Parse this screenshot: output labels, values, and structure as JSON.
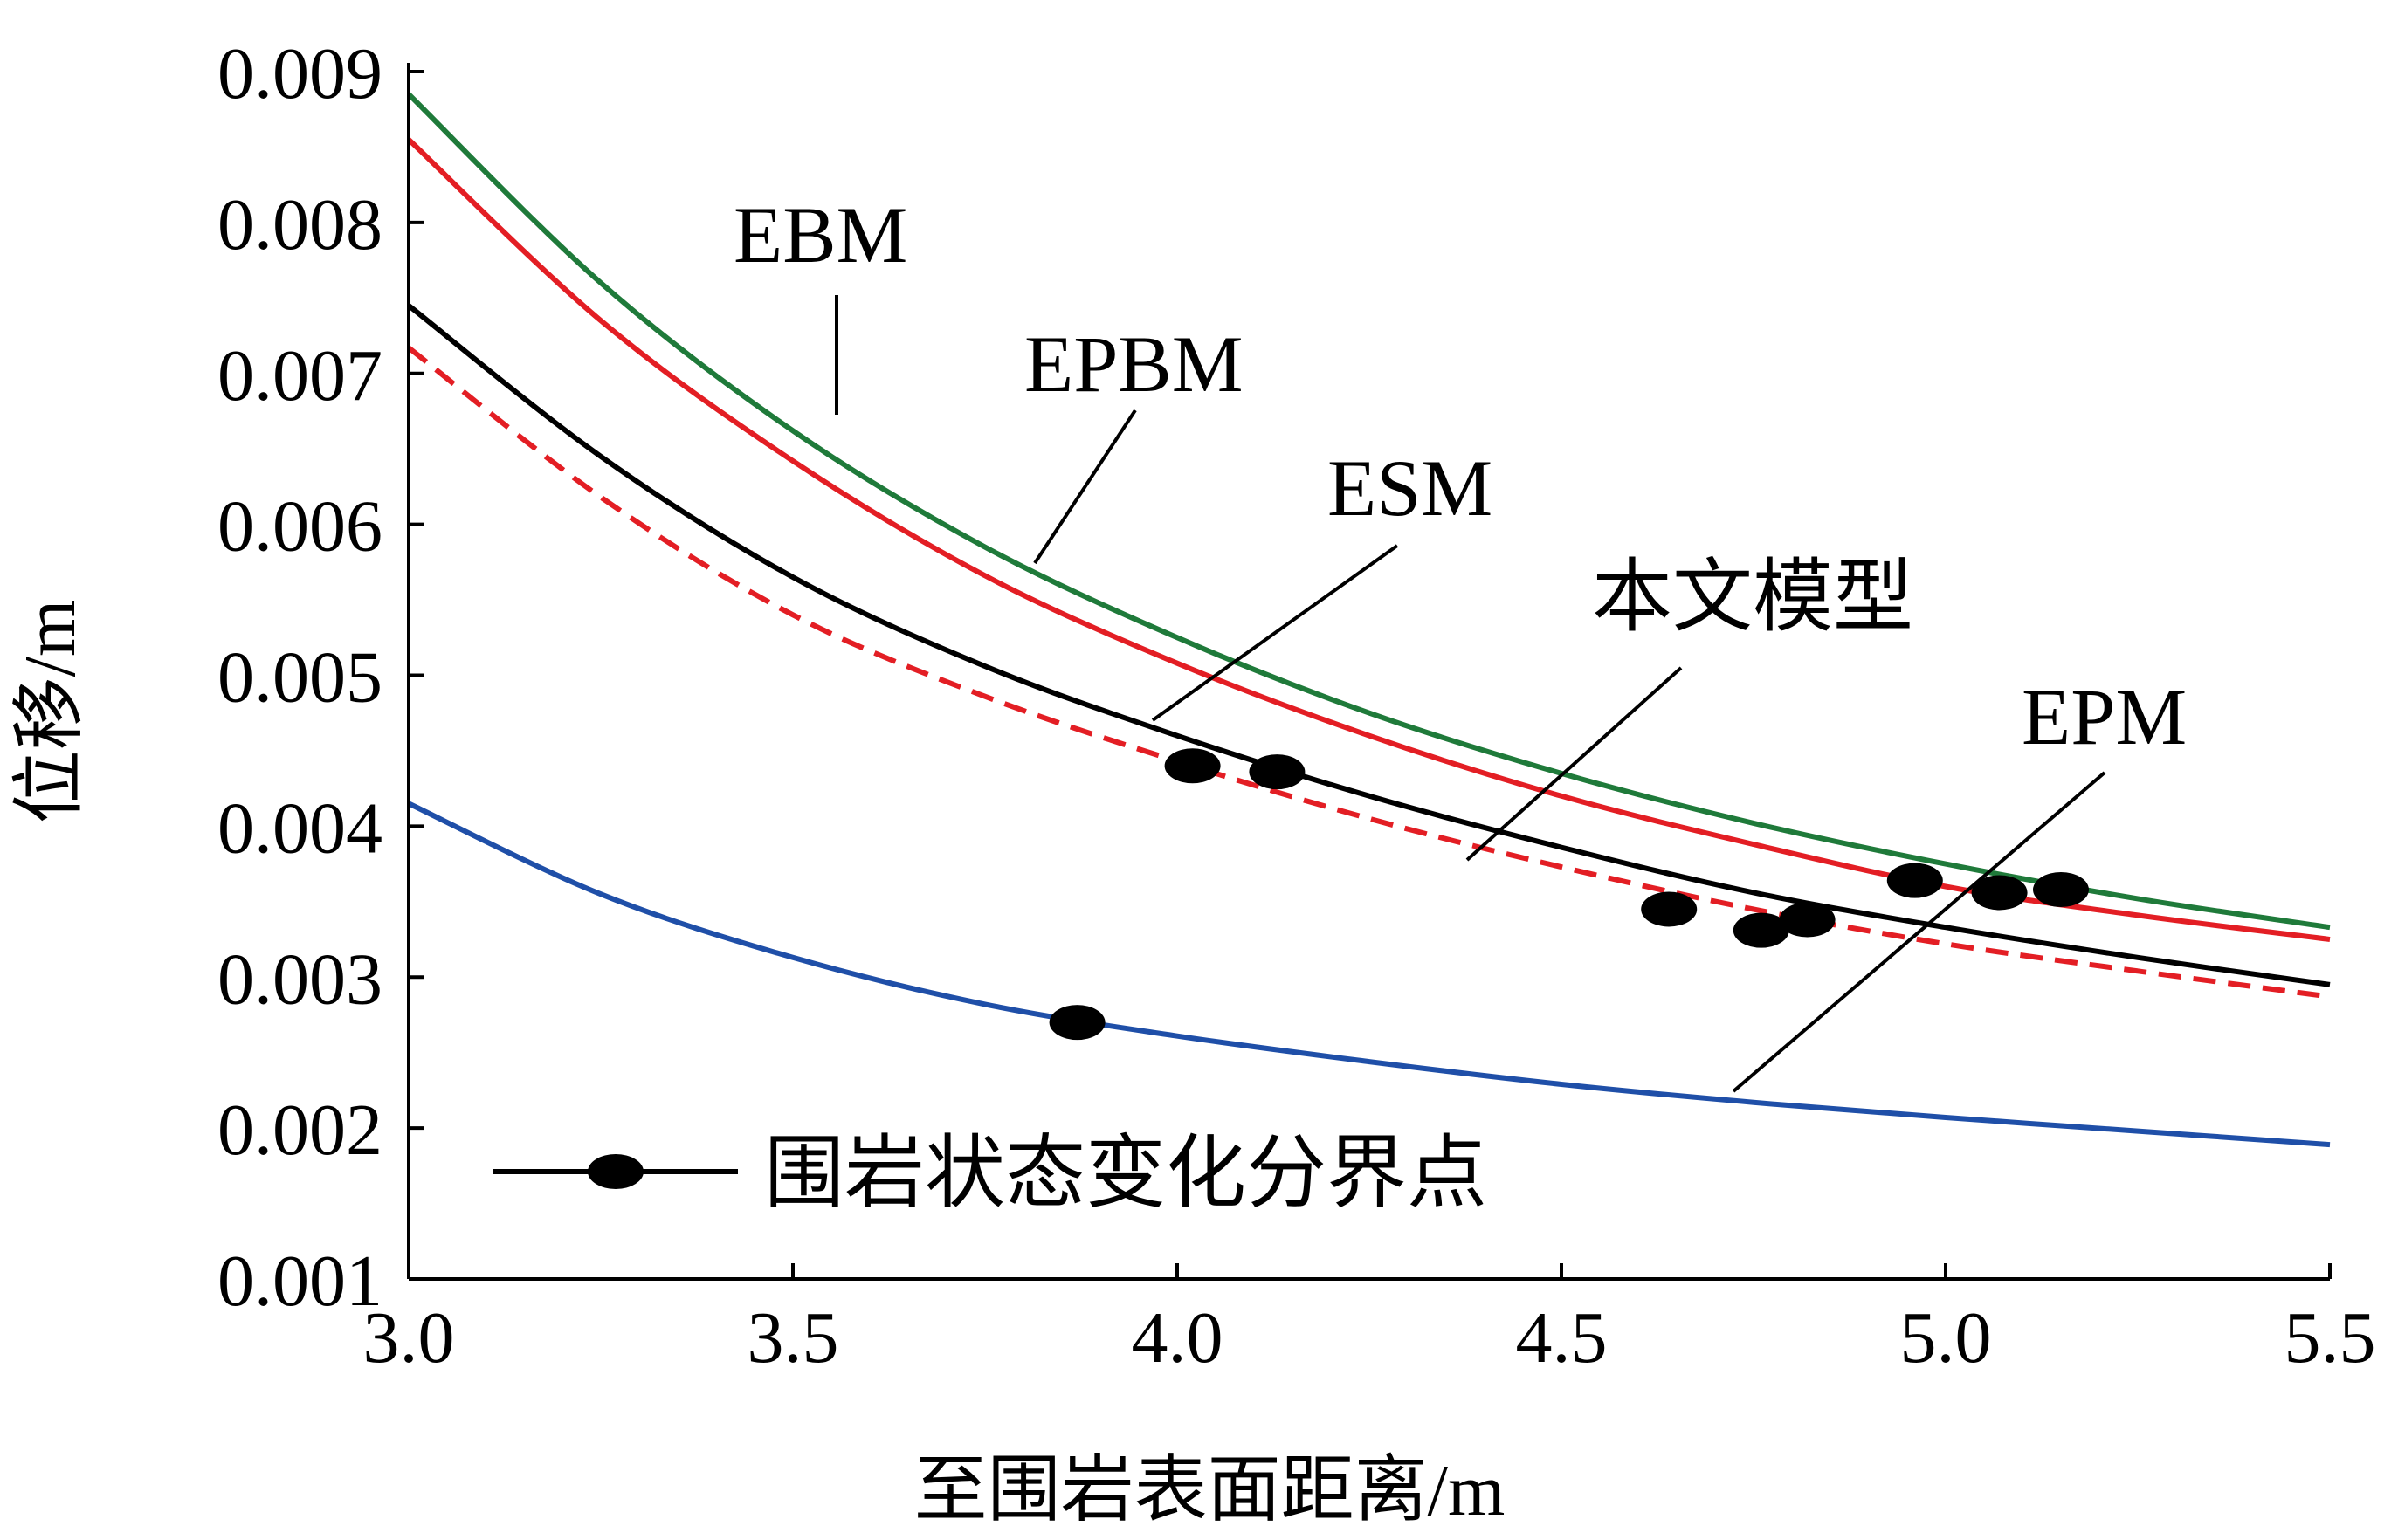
{
  "chart_data": {
    "type": "line",
    "xlabel": "至围岩表面距离/m",
    "ylabel": "位移/m",
    "xlim": [
      3.0,
      5.5
    ],
    "ylim": [
      0.001,
      0.009
    ],
    "x_ticks": [
      3.0,
      3.5,
      4.0,
      4.5,
      5.0,
      5.5
    ],
    "x_tick_labels": [
      "3.0",
      "3.5",
      "4.0",
      "4.5",
      "5.0",
      "5.5"
    ],
    "y_ticks": [
      0.001,
      0.002,
      0.003,
      0.004,
      0.005,
      0.006,
      0.007,
      0.008,
      0.009
    ],
    "y_tick_labels": [
      "0.001",
      "0.002",
      "0.003",
      "0.004",
      "0.005",
      "0.006",
      "0.007",
      "0.008",
      "0.009"
    ],
    "grid": false,
    "x": [
      3.0,
      3.25,
      3.5,
      3.75,
      4.0,
      4.25,
      4.5,
      4.75,
      5.0,
      5.25,
      5.5
    ],
    "series": [
      {
        "name": "EBM",
        "color": "#1f7a3a",
        "dash": "solid",
        "values": [
          0.00885,
          0.0076,
          0.00662,
          0.00585,
          0.00525,
          0.00475,
          0.00435,
          0.00402,
          0.00375,
          0.00352,
          0.00333
        ]
      },
      {
        "name": "EPBM",
        "color": "#e31e24",
        "dash": "solid",
        "values": [
          0.00855,
          0.00735,
          0.00642,
          0.00566,
          0.00508,
          0.0046,
          0.0042,
          0.00388,
          0.0036,
          0.00341,
          0.00325
        ]
      },
      {
        "name": "ESM",
        "color": "#000000",
        "dash": "solid",
        "values": [
          0.00745,
          0.00645,
          0.00565,
          0.00506,
          0.0046,
          0.0042,
          0.00386,
          0.00356,
          0.00333,
          0.00313,
          0.00295
        ]
      },
      {
        "name": "本文模型",
        "color": "#e31e24",
        "dash": "dashed",
        "values": [
          0.00717,
          0.00618,
          0.0054,
          0.00486,
          0.00443,
          0.00405,
          0.00373,
          0.00345,
          0.00322,
          0.00304,
          0.00287
        ]
      },
      {
        "name": "EPM",
        "color": "#1f4fa8",
        "dash": "solid",
        "values": [
          0.00415,
          0.00355,
          0.00313,
          0.00282,
          0.00261,
          0.00244,
          0.00229,
          0.00217,
          0.00207,
          0.00198,
          0.00189
        ]
      }
    ],
    "transition_points": {
      "name": "围岩状态变化分界点",
      "points": [
        {
          "x": 3.87,
          "y": 0.0027
        },
        {
          "x": 4.02,
          "y": 0.0044
        },
        {
          "x": 4.13,
          "y": 0.00436
        },
        {
          "x": 4.64,
          "y": 0.00345
        },
        {
          "x": 4.76,
          "y": 0.00331
        },
        {
          "x": 4.82,
          "y": 0.00338
        },
        {
          "x": 4.96,
          "y": 0.00364
        },
        {
          "x": 5.07,
          "y": 0.00356
        },
        {
          "x": 5.15,
          "y": 0.00358
        }
      ]
    },
    "annotations": [
      {
        "text": "EBM",
        "series": "EBM"
      },
      {
        "text": "EPBM",
        "series": "EPBM"
      },
      {
        "text": "ESM",
        "series": "ESM"
      },
      {
        "text": "本文模型",
        "series": "本文模型"
      },
      {
        "text": "EPM",
        "series": "EPM"
      }
    ],
    "legend": {
      "placement": "bottom-left",
      "label": "围岩状态变化分界点"
    }
  }
}
